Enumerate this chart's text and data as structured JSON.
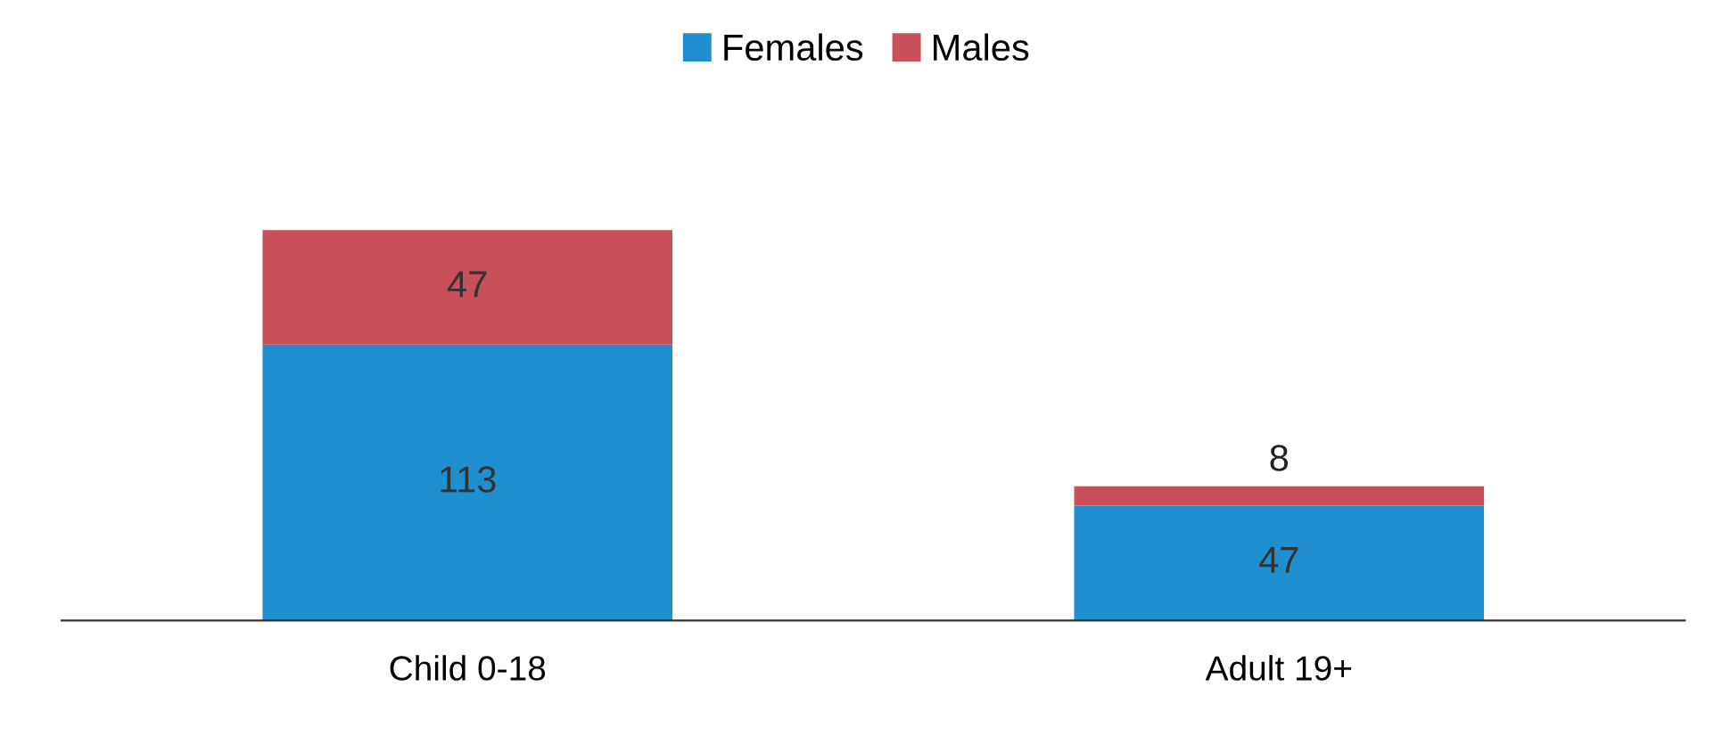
{
  "chart_data": {
    "type": "bar",
    "stacked": true,
    "data_labels": true,
    "legend": "top",
    "grid": false,
    "categories": [
      "Child 0-18",
      "Adult 19+"
    ],
    "series": [
      {
        "name": "Females",
        "color": "#1f8fd0",
        "values": [
          113,
          47
        ]
      },
      {
        "name": "Males",
        "color": "#c9505a",
        "values": [
          47,
          8
        ]
      }
    ]
  }
}
